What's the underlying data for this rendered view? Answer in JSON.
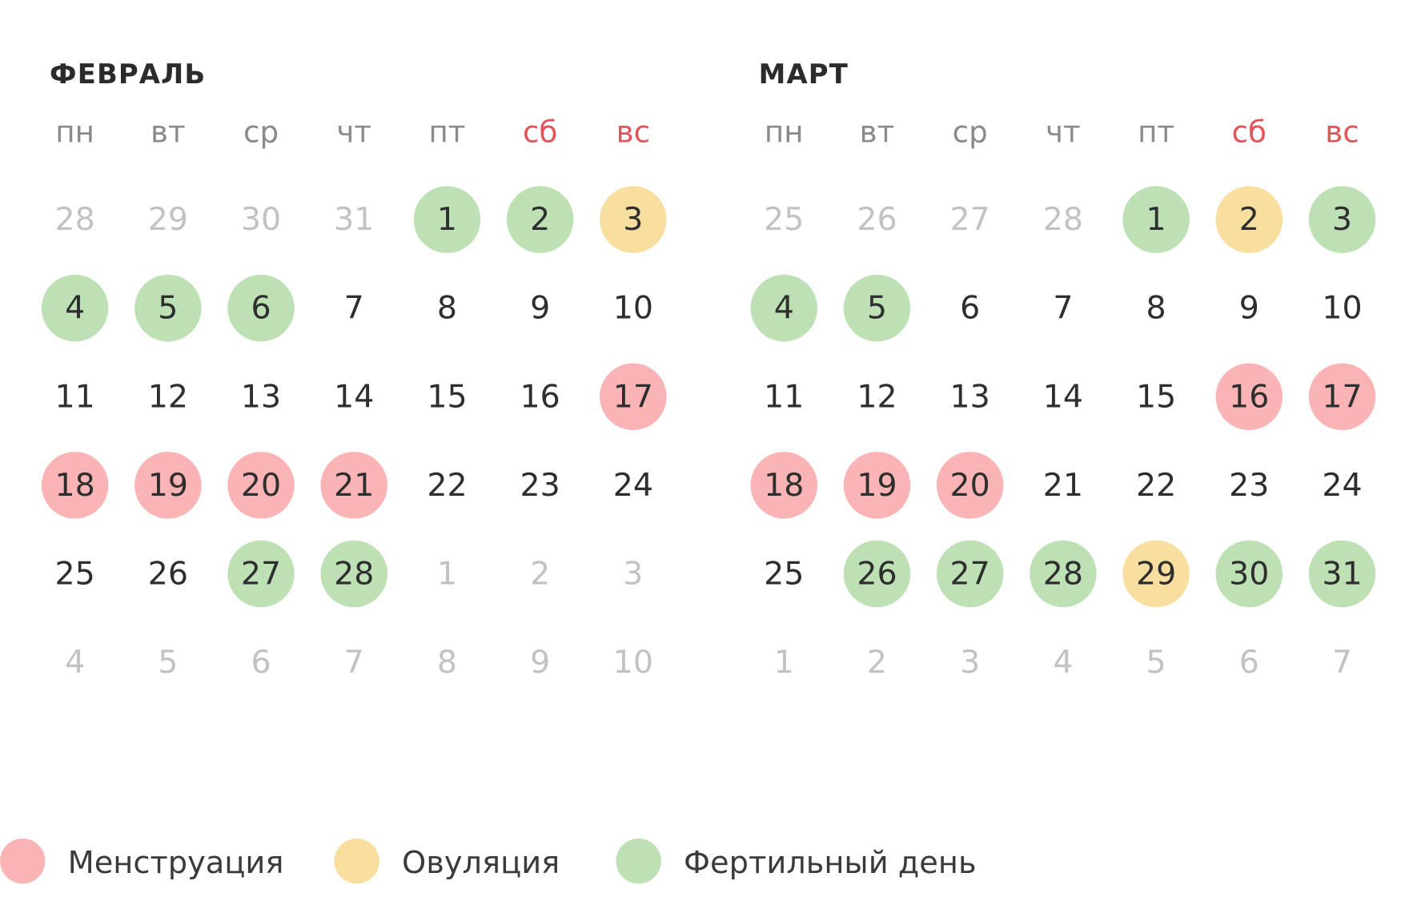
{
  "months": [
    {
      "title": "ФЕВРАЛЬ",
      "weekdays": [
        {
          "text": "пн"
        },
        {
          "text": "вт"
        },
        {
          "text": "ср"
        },
        {
          "text": "чт"
        },
        {
          "text": "пт"
        },
        {
          "text": "сб",
          "color": "#e5535a"
        },
        {
          "text": "вс",
          "color": "#e5535a"
        }
      ],
      "days": [
        {
          "text": "28",
          "muted": true
        },
        {
          "text": "29",
          "muted": true
        },
        {
          "text": "30",
          "muted": true
        },
        {
          "text": "31",
          "muted": true
        },
        {
          "text": "1",
          "color": "#bde0b5"
        },
        {
          "text": "2",
          "color": "#bde0b5"
        },
        {
          "text": "3",
          "color": "#f8dfa0"
        },
        {
          "text": "4",
          "color": "#bde0b5"
        },
        {
          "text": "5",
          "color": "#bde0b5"
        },
        {
          "text": "6",
          "color": "#bde0b5"
        },
        {
          "text": "7"
        },
        {
          "text": "8"
        },
        {
          "text": "9"
        },
        {
          "text": "10"
        },
        {
          "text": "11"
        },
        {
          "text": "12"
        },
        {
          "text": "13"
        },
        {
          "text": "14"
        },
        {
          "text": "15"
        },
        {
          "text": "16"
        },
        {
          "text": "17",
          "color": "#fbb4b6"
        },
        {
          "text": "18",
          "color": "#fbb4b6"
        },
        {
          "text": "19",
          "color": "#fbb4b6"
        },
        {
          "text": "20",
          "color": "#fbb4b6"
        },
        {
          "text": "21",
          "color": "#fbb4b6"
        },
        {
          "text": "22"
        },
        {
          "text": "23"
        },
        {
          "text": "24"
        },
        {
          "text": "25"
        },
        {
          "text": "26"
        },
        {
          "text": "27",
          "color": "#bde0b5"
        },
        {
          "text": "28",
          "color": "#bde0b5"
        },
        {
          "text": "1",
          "muted": true
        },
        {
          "text": "2",
          "muted": true
        },
        {
          "text": "3",
          "muted": true
        },
        {
          "text": "4",
          "muted": true
        },
        {
          "text": "5",
          "muted": true
        },
        {
          "text": "6",
          "muted": true
        },
        {
          "text": "7",
          "muted": true
        },
        {
          "text": "8",
          "muted": true
        },
        {
          "text": "9",
          "muted": true
        },
        {
          "text": "10",
          "muted": true
        }
      ]
    },
    {
      "title": "МАРТ",
      "weekdays": [
        {
          "text": "пн"
        },
        {
          "text": "вт"
        },
        {
          "text": "ср"
        },
        {
          "text": "чт"
        },
        {
          "text": "пт"
        },
        {
          "text": "сб",
          "color": "#e5535a"
        },
        {
          "text": "вс",
          "color": "#e5535a"
        }
      ],
      "days": [
        {
          "text": "25",
          "muted": true
        },
        {
          "text": "26",
          "muted": true
        },
        {
          "text": "27",
          "muted": true
        },
        {
          "text": "28",
          "muted": true
        },
        {
          "text": "1",
          "color": "#bde0b5"
        },
        {
          "text": "2",
          "color": "#f8dfa0"
        },
        {
          "text": "3",
          "color": "#bde0b5"
        },
        {
          "text": "4",
          "color": "#bde0b5"
        },
        {
          "text": "5",
          "color": "#bde0b5"
        },
        {
          "text": "6"
        },
        {
          "text": "7"
        },
        {
          "text": "8"
        },
        {
          "text": "9"
        },
        {
          "text": "10"
        },
        {
          "text": "11"
        },
        {
          "text": "12"
        },
        {
          "text": "13"
        },
        {
          "text": "14"
        },
        {
          "text": "15"
        },
        {
          "text": "16",
          "color": "#fbb4b6"
        },
        {
          "text": "17",
          "color": "#fbb4b6"
        },
        {
          "text": "18",
          "color": "#fbb4b6"
        },
        {
          "text": "19",
          "color": "#fbb4b6"
        },
        {
          "text": "20",
          "color": "#fbb4b6"
        },
        {
          "text": "21"
        },
        {
          "text": "22"
        },
        {
          "text": "23"
        },
        {
          "text": "24"
        },
        {
          "text": "25"
        },
        {
          "text": "26",
          "color": "#bde0b5"
        },
        {
          "text": "27",
          "color": "#bde0b5"
        },
        {
          "text": "28",
          "color": "#bde0b5"
        },
        {
          "text": "29",
          "color": "#f8dfa0"
        },
        {
          "text": "30",
          "color": "#bde0b5"
        },
        {
          "text": "31",
          "color": "#bde0b5"
        },
        {
          "text": "1",
          "muted": true
        },
        {
          "text": "2",
          "muted": true
        },
        {
          "text": "3",
          "muted": true
        },
        {
          "text": "4",
          "muted": true
        },
        {
          "text": "5",
          "muted": true
        },
        {
          "text": "6",
          "muted": true
        },
        {
          "text": "7",
          "muted": true
        }
      ]
    }
  ],
  "legend": [
    {
      "text": "Менструация",
      "color": "#fbb4b6"
    },
    {
      "text": "Овуляция",
      "color": "#f8dfa0"
    },
    {
      "text": "Фертильный день",
      "color": "#bde0b5"
    }
  ]
}
